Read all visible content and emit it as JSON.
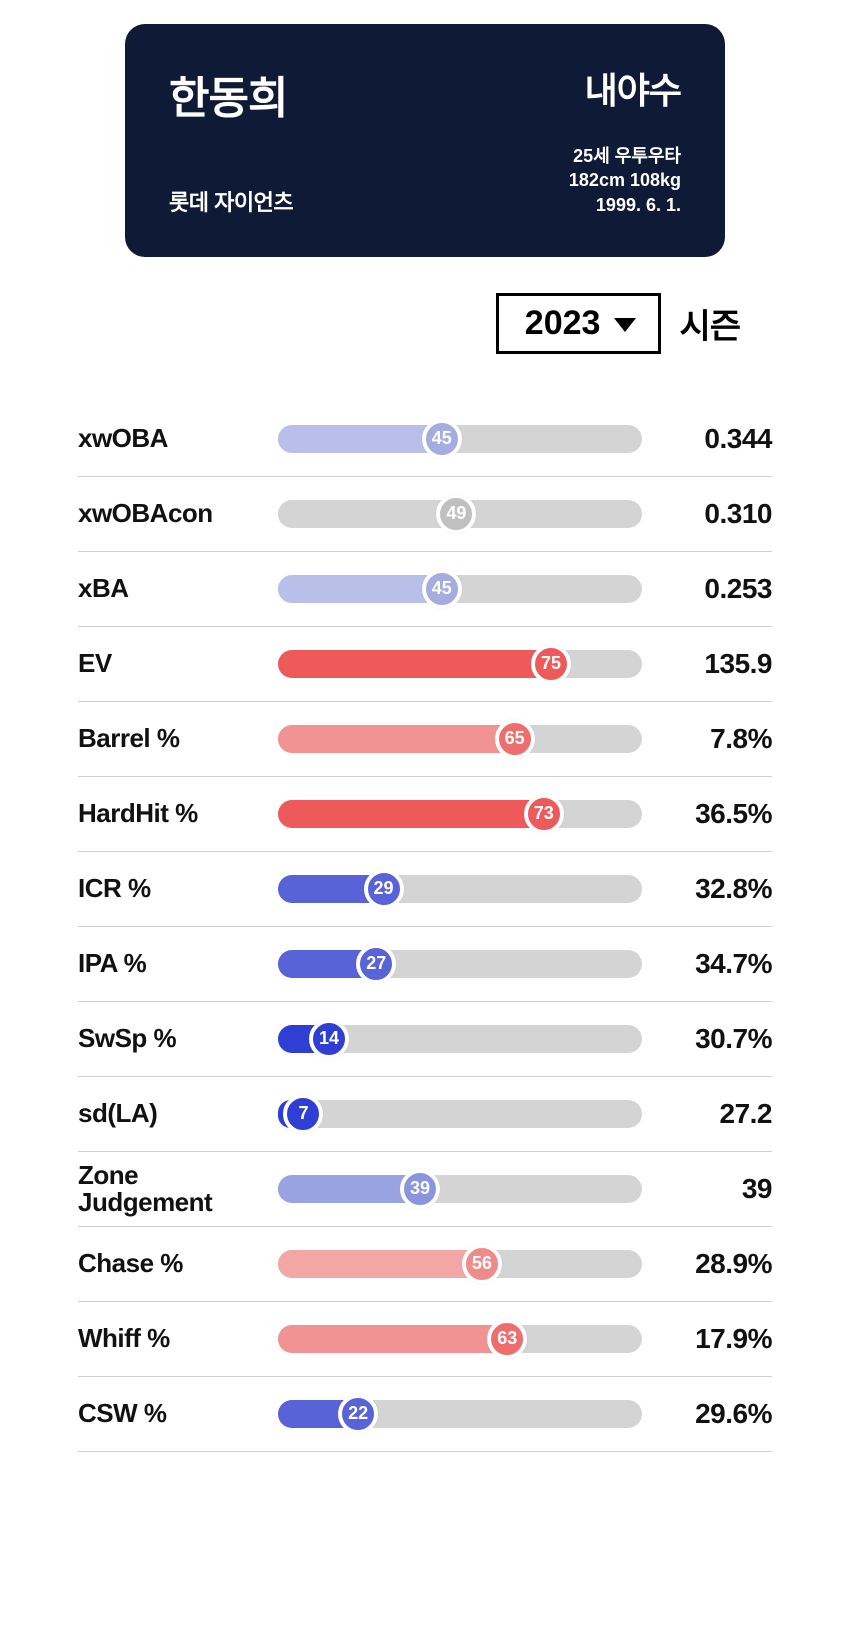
{
  "header": {
    "player_name": "한동희",
    "team": "롯데 자이언츠",
    "position": "내야수",
    "bio_line1": "25세 우투우타",
    "bio_line2": "182cm 108kg",
    "bio_line3": "1999. 6. 1.",
    "card_bg": "#0f1a36",
    "text_color": "#ffffff"
  },
  "season": {
    "year": "2023",
    "label": "시즌"
  },
  "track_color": "#d4d4d4",
  "stats": [
    {
      "label": "xwOBA",
      "percentile": 45,
      "value": "0.344",
      "fill_color": "#b8bfe8",
      "knob_color": "#a4ace0"
    },
    {
      "label": "xwOBAcon",
      "percentile": 49,
      "value": "0.310",
      "fill_color": "#d4d4d4",
      "knob_color": "#c0c0c0"
    },
    {
      "label": "xBA",
      "percentile": 45,
      "value": "0.253",
      "fill_color": "#b8bfe8",
      "knob_color": "#a4ace0"
    },
    {
      "label": "EV",
      "percentile": 75,
      "value": "135.9",
      "fill_color": "#ee5a5a",
      "knob_color": "#ee5a5a"
    },
    {
      "label": "Barrel %",
      "percentile": 65,
      "value": "7.8%",
      "fill_color": "#f29393",
      "knob_color": "#ee6e6e"
    },
    {
      "label": "HardHit %",
      "percentile": 73,
      "value": "36.5%",
      "fill_color": "#ee5a5a",
      "knob_color": "#ee5a5a"
    },
    {
      "label": "ICR %",
      "percentile": 29,
      "value": "32.8%",
      "fill_color": "#5863d8",
      "knob_color": "#5863d8"
    },
    {
      "label": "IPA %",
      "percentile": 27,
      "value": "34.7%",
      "fill_color": "#5863d8",
      "knob_color": "#5863d8"
    },
    {
      "label": "SwSp %",
      "percentile": 14,
      "value": "30.7%",
      "fill_color": "#2f3fd4",
      "knob_color": "#2f3fd4"
    },
    {
      "label": "sd(LA)",
      "percentile": 7,
      "value": "27.2",
      "fill_color": "#2f3fd4",
      "knob_color": "#2f3fd4"
    },
    {
      "label": "Zone Judgement",
      "percentile": 39,
      "value": "39",
      "fill_color": "#9aa3e2",
      "knob_color": "#8b95de"
    },
    {
      "label": "Chase %",
      "percentile": 56,
      "value": "28.9%",
      "fill_color": "#f2a6a6",
      "knob_color": "#ef8b8b"
    },
    {
      "label": "Whiff %",
      "percentile": 63,
      "value": "17.9%",
      "fill_color": "#f29393",
      "knob_color": "#ee6e6e"
    },
    {
      "label": "CSW %",
      "percentile": 22,
      "value": "29.6%",
      "fill_color": "#5863d8",
      "knob_color": "#5863d8"
    }
  ]
}
